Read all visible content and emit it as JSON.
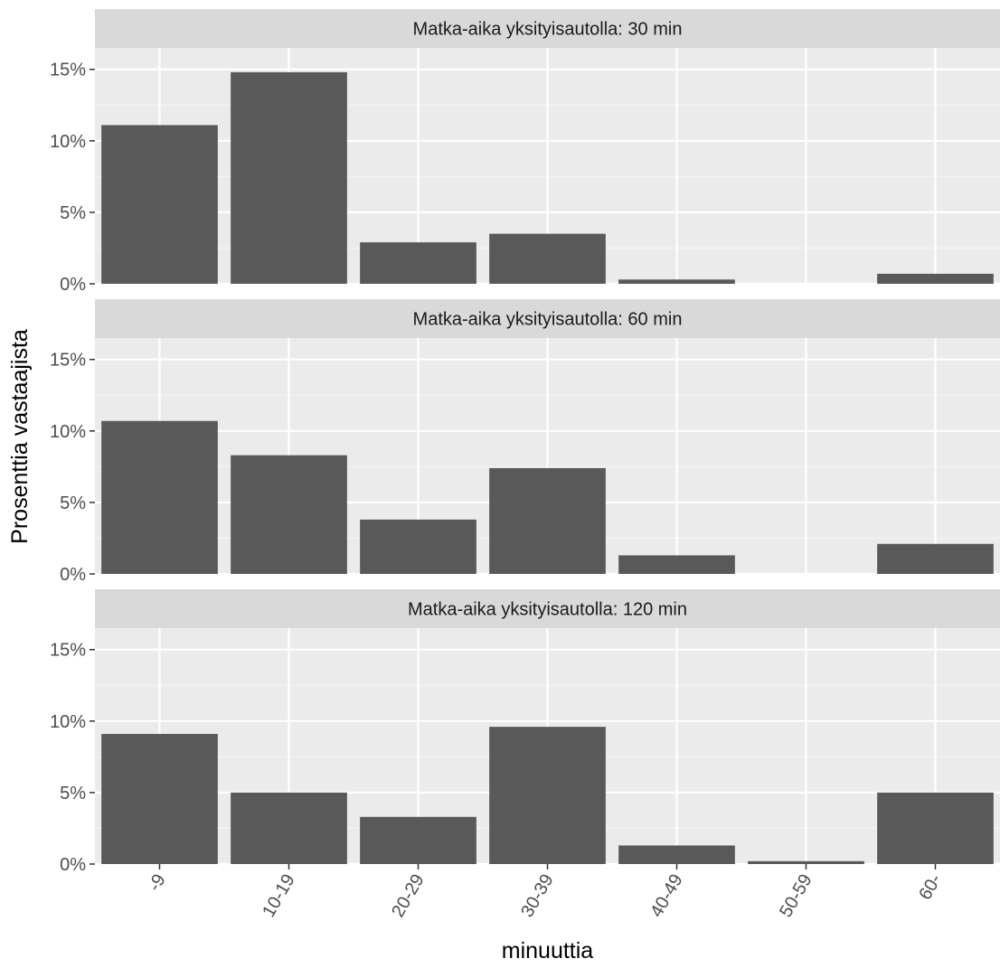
{
  "chart_data": {
    "type": "bar",
    "facet_layout": "vertical",
    "categories": [
      "-9",
      "10-19",
      "20-29",
      "30-39",
      "40-49",
      "50-59",
      "60-"
    ],
    "xlabel": "minuuttia",
    "ylabel": "Prosenttia vastaajista",
    "ylim": [
      0,
      16.5
    ],
    "y_ticks": [
      0,
      5,
      10,
      15
    ],
    "y_tick_labels": [
      "0%",
      "5%",
      "10%",
      "15%"
    ],
    "grid": true,
    "panels": [
      {
        "title": "Matka-aika yksityisautolla: 30 min",
        "values": [
          11.1,
          14.8,
          2.9,
          3.5,
          0.3,
          0.0,
          0.7
        ]
      },
      {
        "title": "Matka-aika yksityisautolla: 60 min",
        "values": [
          10.7,
          8.3,
          3.8,
          7.4,
          1.3,
          0.0,
          2.1
        ]
      },
      {
        "title": "Matka-aika yksityisautolla: 120 min",
        "values": [
          9.1,
          5.0,
          3.3,
          9.6,
          1.3,
          0.2,
          5.0
        ]
      }
    ],
    "colors": {
      "bar": "#595959",
      "panel_bg": "#EBEBEB",
      "strip_bg": "#D9D9D9",
      "grid_major": "#FFFFFF",
      "axis_text": "#4D4D4D",
      "title_text": "#1A1A1A"
    }
  }
}
